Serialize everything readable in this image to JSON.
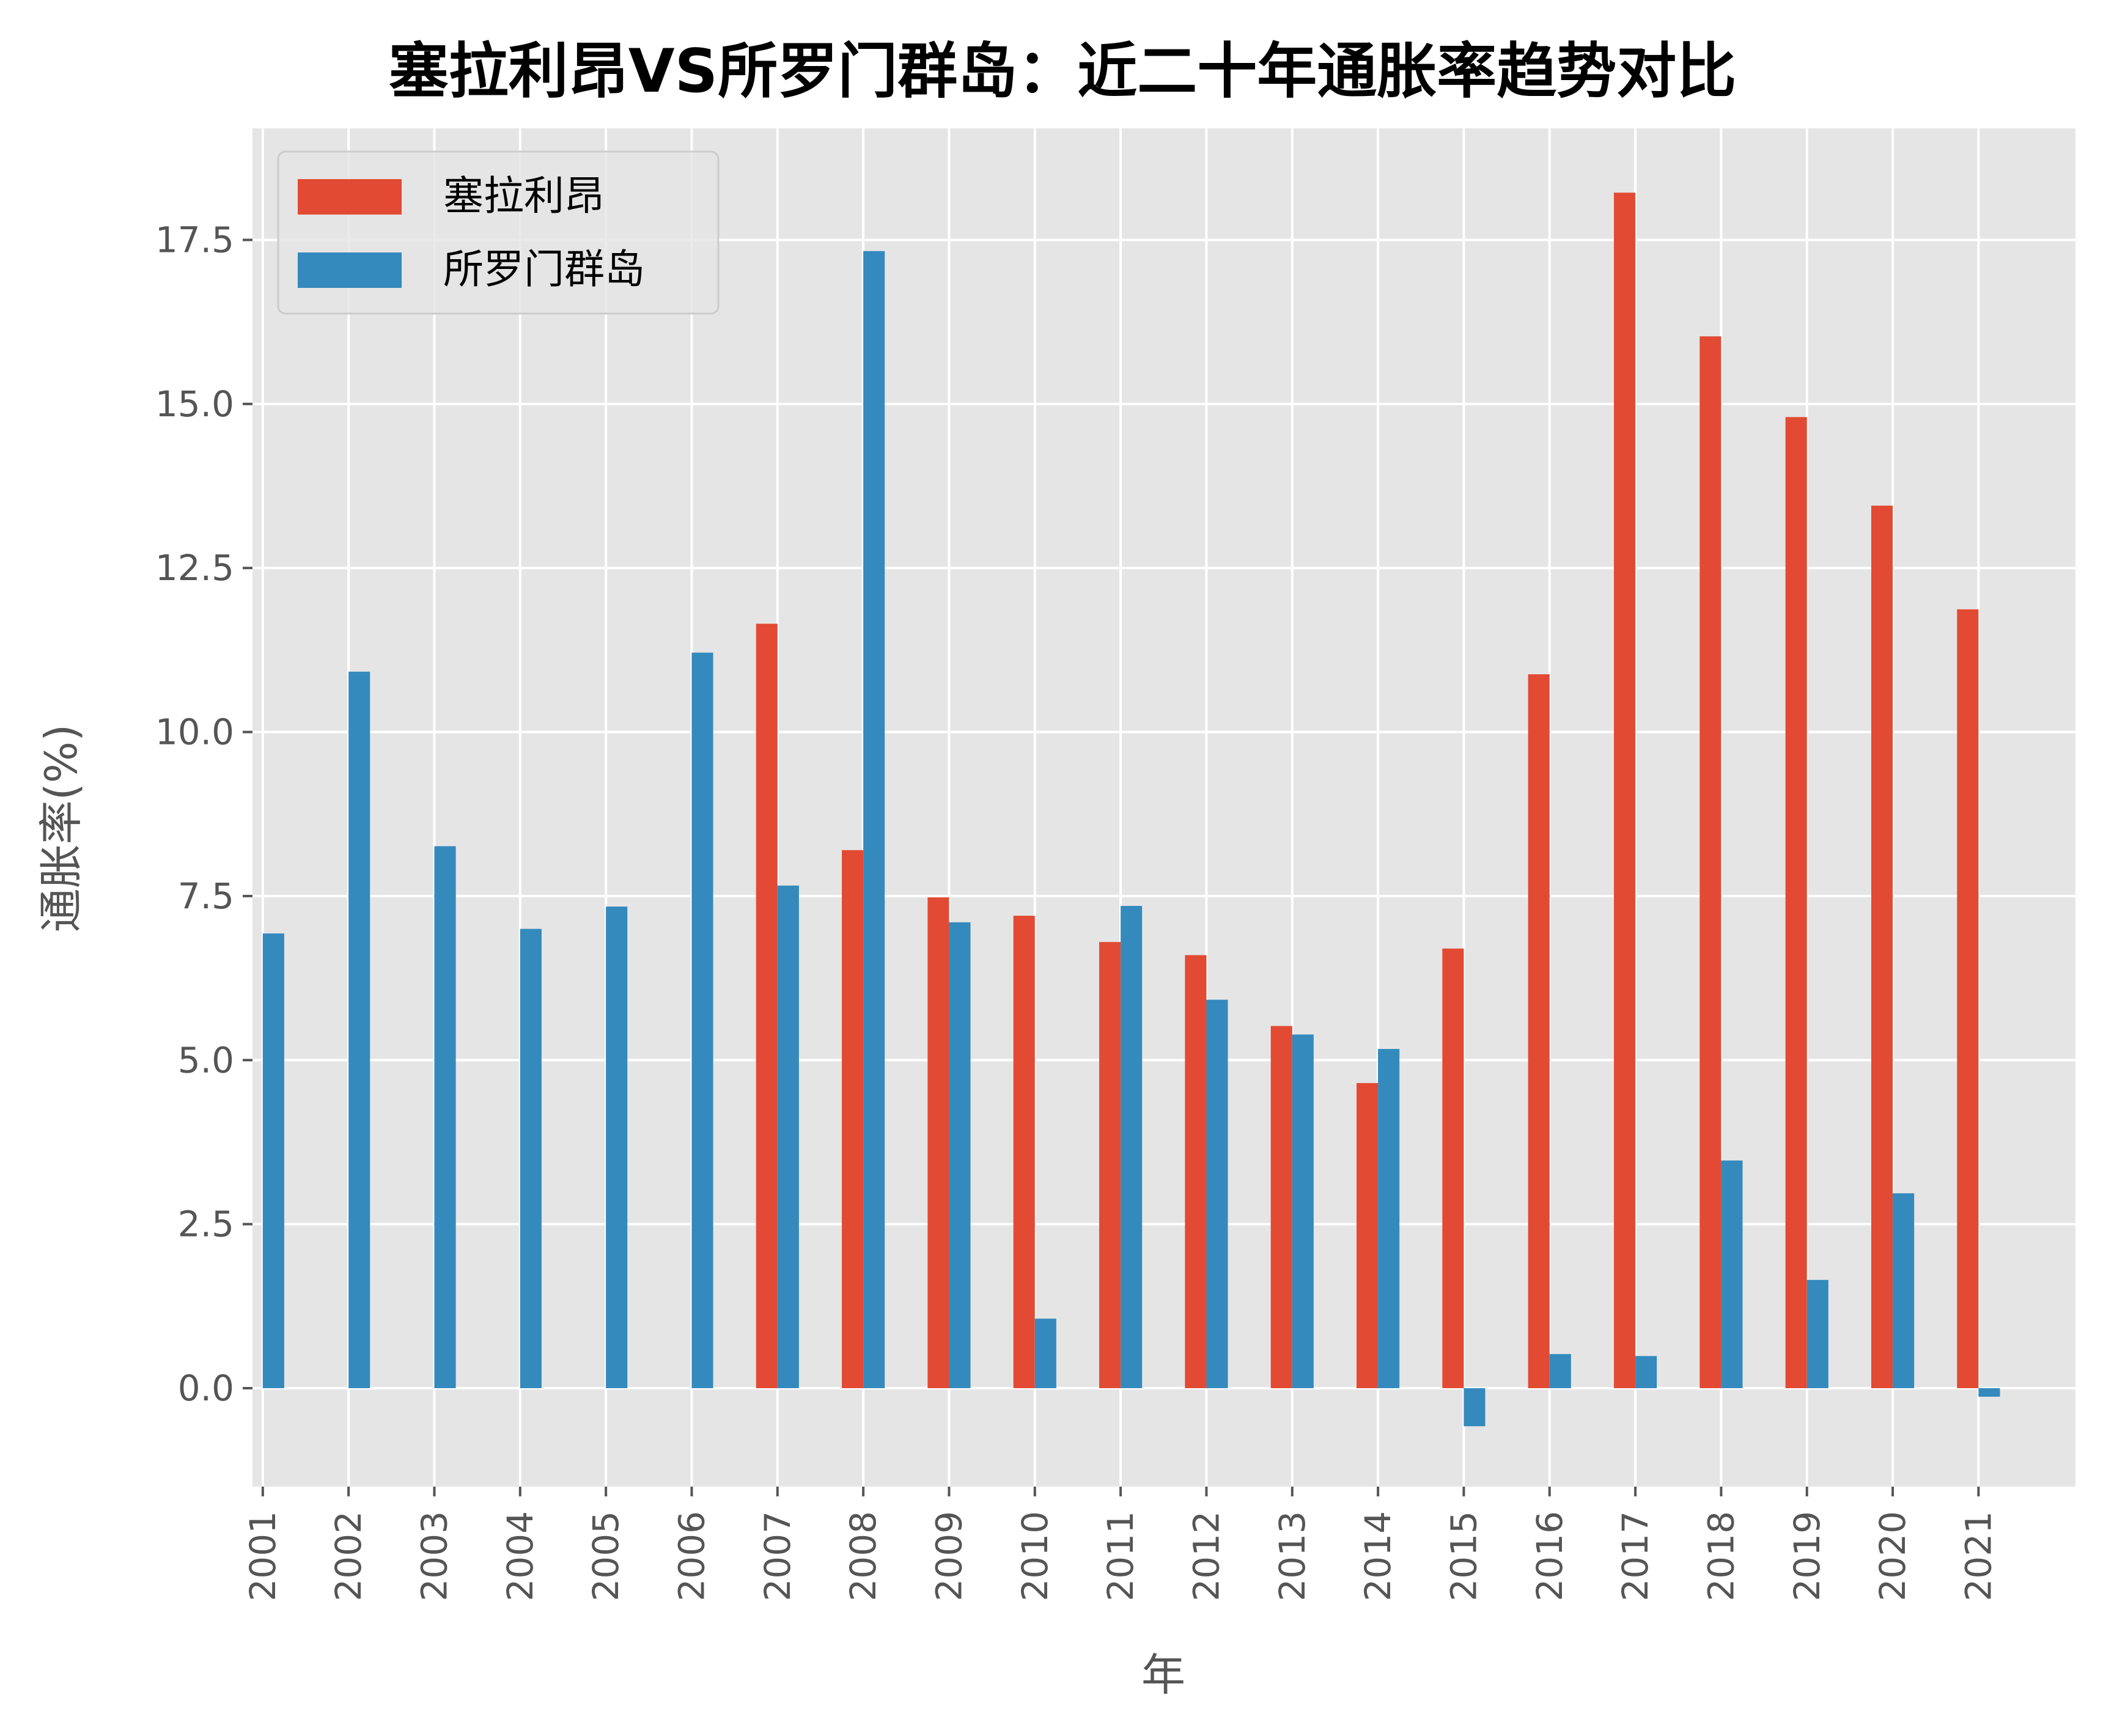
{
  "chart_data": {
    "type": "bar",
    "title": "塞拉利昂VS所罗门群岛：近二十年通胀率趋势对比",
    "xlabel": "年",
    "ylabel": "通胀率(%)",
    "categories": [
      "2001",
      "2002",
      "2003",
      "2004",
      "2005",
      "2006",
      "2007",
      "2008",
      "2009",
      "2010",
      "2011",
      "2012",
      "2013",
      "2014",
      "2015",
      "2016",
      "2017",
      "2018",
      "2019",
      "2020",
      "2021"
    ],
    "series": [
      {
        "name": "塞拉利昂",
        "color": "#E24A33",
        "values": [
          null,
          null,
          null,
          null,
          null,
          null,
          11.65,
          8.2,
          7.48,
          7.2,
          6.8,
          6.6,
          5.52,
          4.65,
          6.7,
          10.88,
          18.22,
          16.03,
          14.8,
          13.45,
          11.87
        ]
      },
      {
        "name": "所罗门群岛",
        "color": "#348ABD",
        "values": [
          6.93,
          10.92,
          8.26,
          7.0,
          7.34,
          11.21,
          7.66,
          17.33,
          7.1,
          1.06,
          7.35,
          5.92,
          5.39,
          5.17,
          -0.58,
          0.52,
          0.49,
          3.47,
          1.65,
          2.97,
          -0.13
        ]
      }
    ],
    "ylim": [
      -1.5,
      19.2
    ],
    "yticks": [
      0.0,
      2.5,
      5.0,
      7.5,
      10.0,
      12.5,
      15.0,
      17.5
    ],
    "ytick_labels": [
      "0.0",
      "2.5",
      "5.0",
      "7.5",
      "10.0",
      "12.5",
      "15.0",
      "17.5"
    ],
    "grid": true,
    "legend_position": "top-left"
  }
}
